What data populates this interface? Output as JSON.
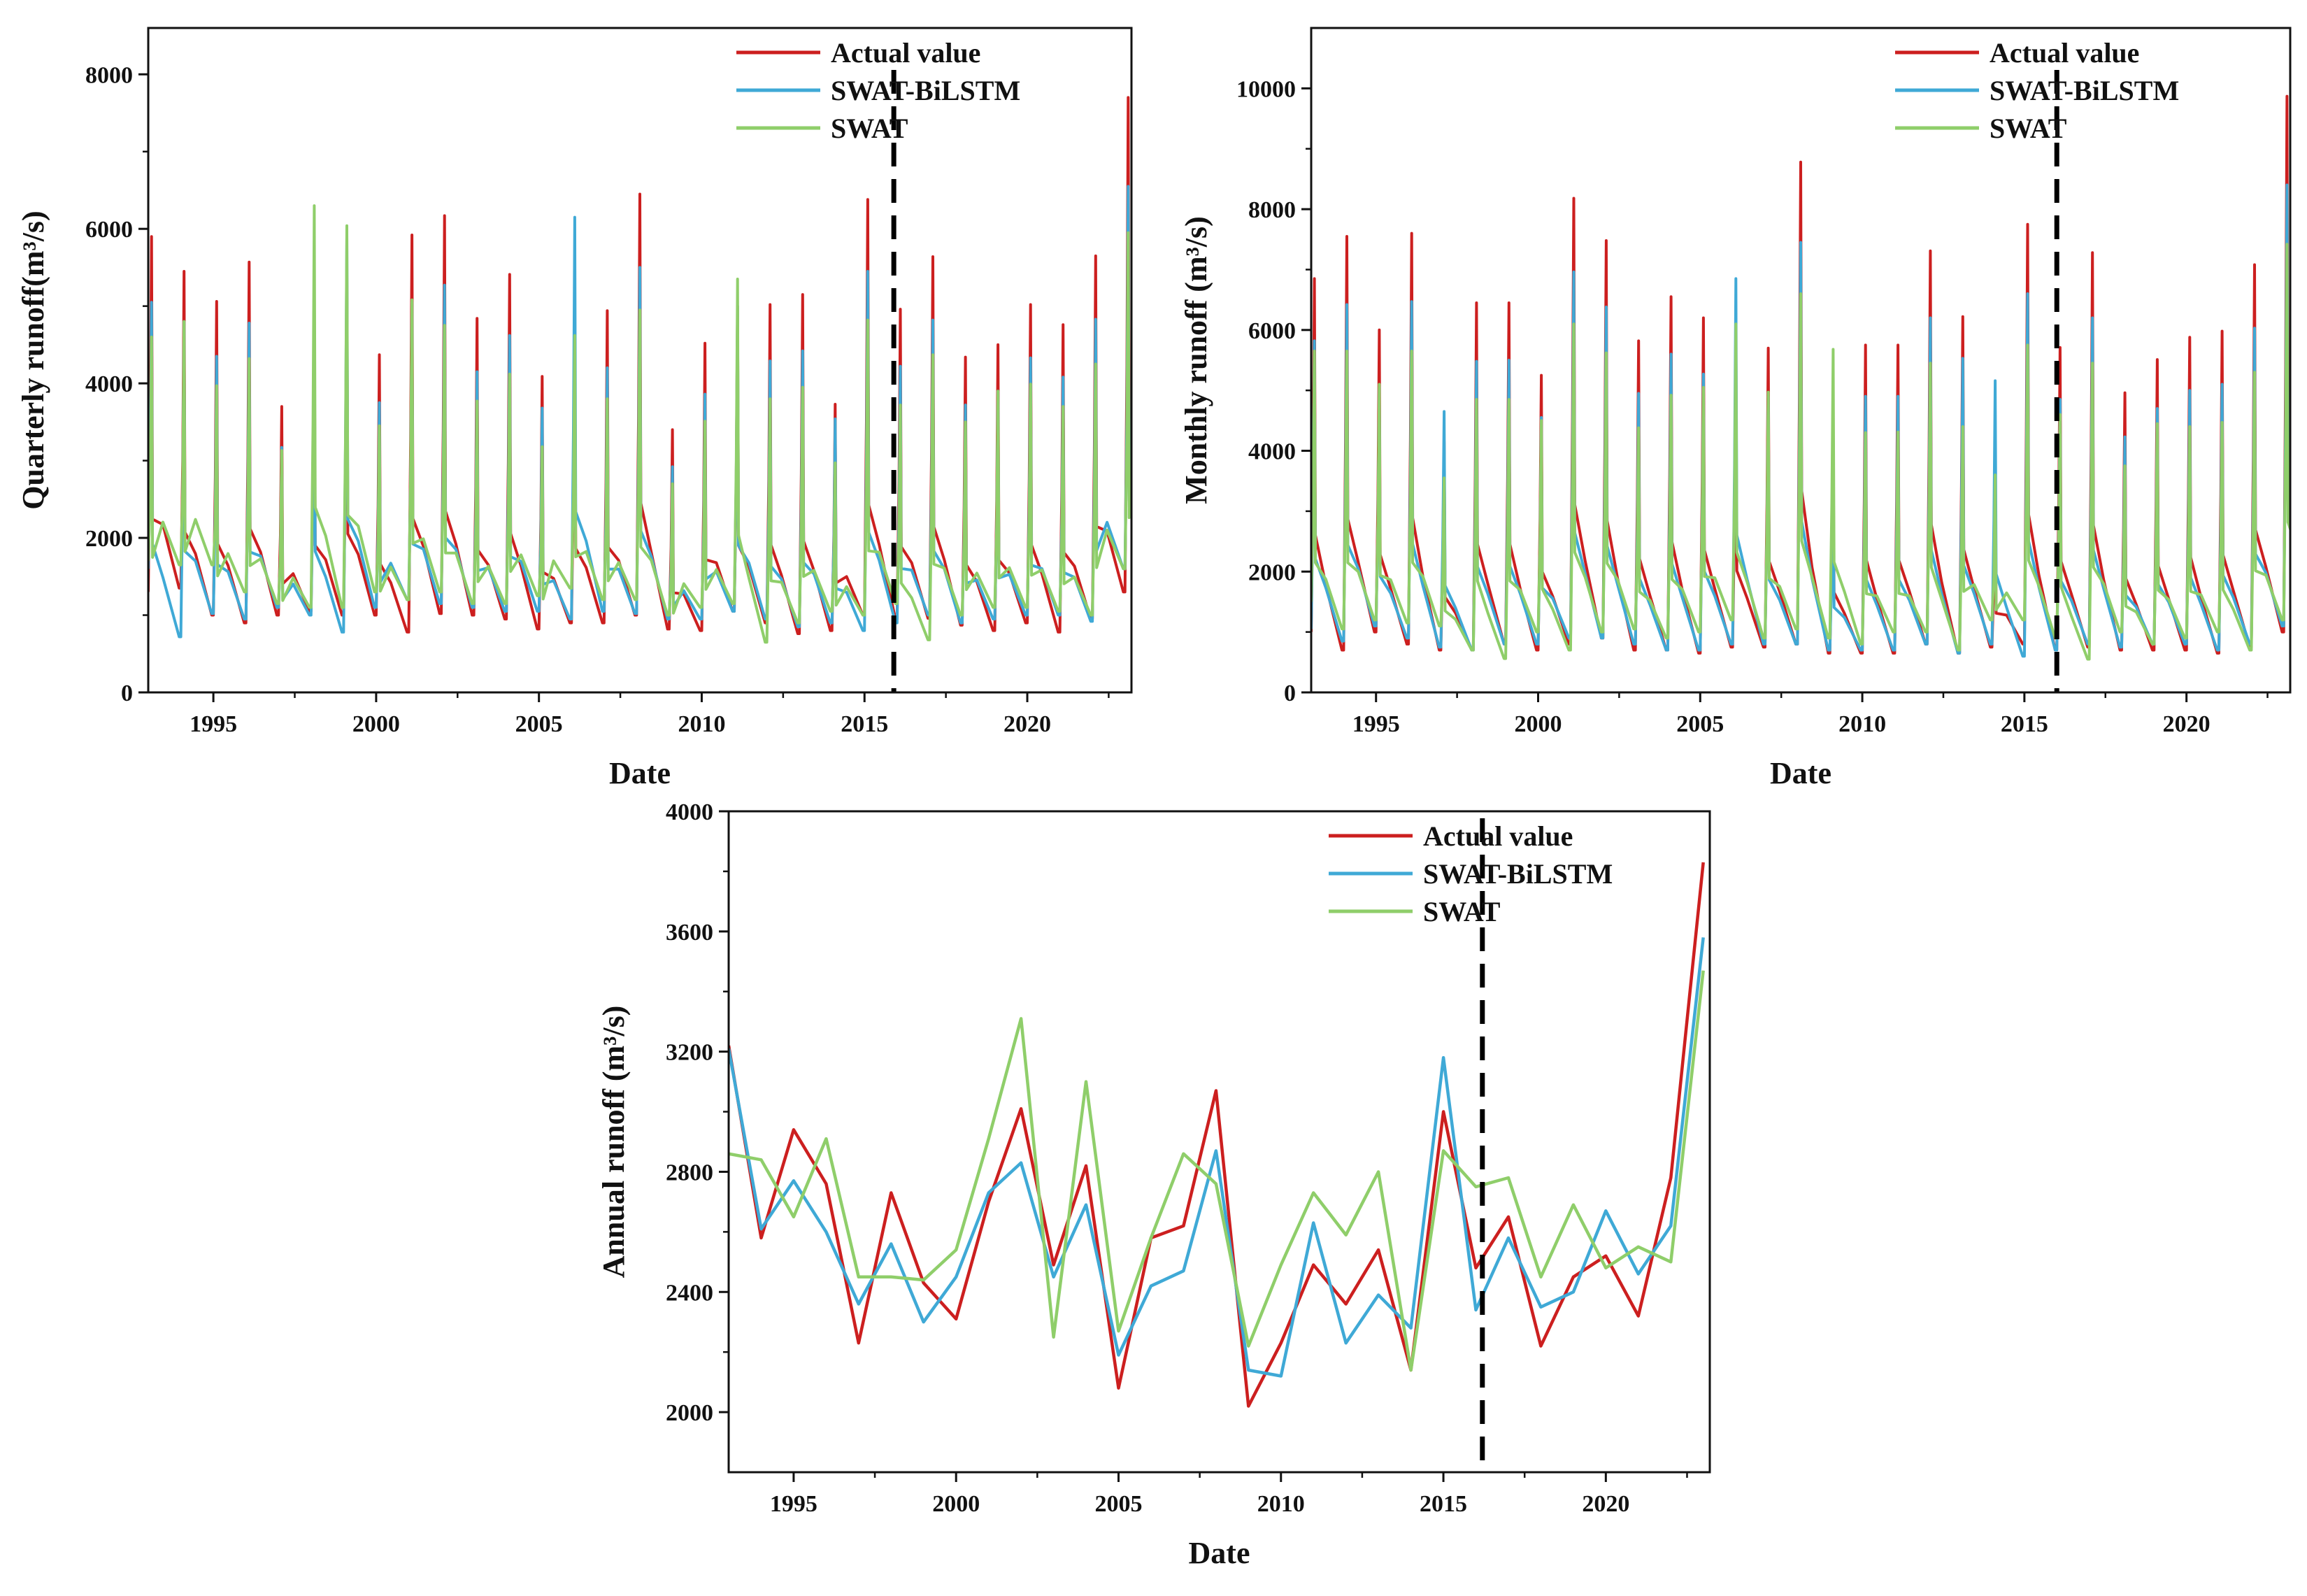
{
  "colors": {
    "actual": "#cc1f1f",
    "bilstm": "#3fa9d6",
    "swat": "#8fce6a",
    "axis": "#111111",
    "split": "#000000"
  },
  "chart_data": [
    {
      "id": "quarterly",
      "type": "line",
      "title": "",
      "xlabel": "Date",
      "ylabel": "Quarterly runoff(m³/s)",
      "xlim": [
        1993,
        2023.2
      ],
      "ylim": [
        0,
        8600
      ],
      "xticks": [
        1995,
        2000,
        2005,
        2010,
        2015,
        2020
      ],
      "yticks": [
        0,
        2000,
        4000,
        6000,
        8000
      ],
      "split_x": 2015.9,
      "legend_position": "top-right",
      "granularity": "quarterly",
      "peaks": {
        "actual": [
          5900,
          5450,
          5060,
          5570,
          3700,
          5000,
          5400,
          4370,
          5920,
          6170,
          4840,
          5410,
          4090,
          4900,
          4940,
          6450,
          3400,
          4520,
          5000,
          5020,
          5150,
          3730,
          6380,
          4960,
          5640,
          4340,
          4500,
          5020,
          4760,
          5650,
          7700
        ],
        "bilstm": [
          5050,
          4800,
          4350,
          4780,
          3170,
          4800,
          5900,
          3750,
          5050,
          5270,
          4150,
          4620,
          3680,
          6150,
          4200,
          5500,
          2920,
          3860,
          5000,
          4290,
          4420,
          3540,
          5450,
          4220,
          4820,
          3720,
          3900,
          4330,
          4080,
          4830,
          6550
        ],
        "swat": [
          4600,
          4800,
          3970,
          4320,
          3130,
          6300,
          6040,
          3450,
          5080,
          4750,
          3770,
          4120,
          3180,
          4620,
          3800,
          4950,
          2700,
          3510,
          5350,
          3800,
          3950,
          2970,
          4820,
          3720,
          4370,
          3500,
          3900,
          3990,
          3700,
          4250,
          5950
        ]
      },
      "lows": {
        "actual": [
          1300,
          1350,
          1000,
          900,
          1000,
          1050,
          1000,
          1000,
          780,
          1020,
          1000,
          950,
          820,
          900,
          900,
          1000,
          820,
          800,
          1050,
          900,
          760,
          800,
          1000,
          950,
          960,
          870,
          800,
          900,
          780,
          950,
          1300
        ],
        "bilstm": [
          1600,
          720,
          1020,
          950,
          1100,
          1000,
          780,
          1100,
          1200,
          1150,
          1100,
          1050,
          1050,
          950,
          1050,
          1020,
          950,
          950,
          1050,
          950,
          850,
          900,
          800,
          900,
          1000,
          900,
          950,
          1000,
          1000,
          920,
          1600
        ],
        "swat": [
          1700,
          1650,
          1650,
          1300,
          1150,
          1100,
          1100,
          1300,
          1200,
          1300,
          1150,
          1150,
          1250,
          1350,
          1200,
          1200,
          1000,
          1100,
          1150,
          650,
          900,
          1050,
          1000,
          1150,
          680,
          1000,
          1100,
          1100,
          1050,
          1000,
          1600
        ]
      }
    },
    {
      "id": "monthly",
      "type": "line",
      "title": "",
      "xlabel": "Date",
      "ylabel": "Monthly runoff (m³/s)",
      "xlim": [
        1993,
        2023.2
      ],
      "ylim": [
        0,
        11000
      ],
      "xticks": [
        1995,
        2000,
        2005,
        2010,
        2015,
        2020
      ],
      "yticks": [
        0,
        2000,
        4000,
        6000,
        8000,
        10000
      ],
      "split_x": 2016.0,
      "legend_position": "top-right",
      "granularity": "monthly",
      "peaks": {
        "actual": [
          6850,
          7550,
          6000,
          7600,
          4150,
          6450,
          6450,
          5250,
          8180,
          7480,
          5820,
          6550,
          6200,
          5300,
          5700,
          8780,
          4350,
          5750,
          5750,
          7310,
          6220,
          3450,
          7750,
          5710,
          7280,
          4960,
          5510,
          5880,
          5980,
          7080,
          9870
        ],
        "bilstm": [
          5820,
          6420,
          5050,
          6470,
          4650,
          5480,
          5500,
          4550,
          6960,
          6380,
          4950,
          5600,
          5270,
          6850,
          4900,
          7450,
          3700,
          4900,
          4900,
          6200,
          5530,
          5160,
          6600,
          4850,
          6200,
          4230,
          4700,
          5000,
          5100,
          6030,
          8400
        ],
        "swat": [
          5650,
          5650,
          5100,
          5650,
          3550,
          4850,
          4850,
          4500,
          6100,
          5620,
          4380,
          4920,
          5050,
          6100,
          4970,
          6600,
          5680,
          4300,
          4310,
          5450,
          4400,
          3600,
          5750,
          4600,
          5450,
          3750,
          4450,
          4400,
          4470,
          5300,
          7420
        ]
      },
      "lows": {
        "actual": [
          1000,
          700,
          1000,
          800,
          700,
          700,
          800,
          700,
          800,
          900,
          700,
          700,
          650,
          750,
          750,
          800,
          650,
          650,
          650,
          800,
          650,
          750,
          800,
          700,
          750,
          700,
          700,
          700,
          650,
          750,
          1000
        ],
        "bilstm": [
          1050,
          850,
          1100,
          900,
          750,
          700,
          800,
          800,
          900,
          900,
          800,
          700,
          700,
          800,
          800,
          800,
          700,
          700,
          700,
          800,
          650,
          800,
          600,
          700,
          800,
          750,
          800,
          800,
          700,
          800,
          1100
        ],
        "swat": [
          1500,
          1050,
          1200,
          1150,
          1100,
          700,
          560,
          1000,
          700,
          1000,
          1050,
          900,
          1000,
          1200,
          900,
          1050,
          900,
          800,
          1000,
          1000,
          700,
          1200,
          1200,
          900,
          550,
          1000,
          800,
          900,
          1000,
          700,
          1200
        ]
      }
    },
    {
      "id": "annual",
      "type": "line",
      "title": "",
      "xlabel": "Date",
      "ylabel": "Annual runoff (m³/s)",
      "xlim": [
        1993,
        2023.2
      ],
      "ylim": [
        1800,
        4000
      ],
      "xticks": [
        1995,
        2000,
        2005,
        2010,
        2015,
        2020
      ],
      "yticks": [
        2000,
        2400,
        2800,
        3200,
        3600,
        4000
      ],
      "split_x": 2016.2,
      "legend_position": "top-right",
      "granularity": "annual",
      "x": [
        1993,
        1994,
        1995,
        1996,
        1997,
        1998,
        1999,
        2000,
        2001,
        2002,
        2003,
        2004,
        2005,
        2006,
        2007,
        2008,
        2009,
        2010,
        2011,
        2012,
        2013,
        2014,
        2015,
        2016,
        2017,
        2018,
        2019,
        2020,
        2021,
        2022,
        2023
      ],
      "series": [
        {
          "name": "Actual value",
          "key": "actual",
          "values": [
            3220,
            2580,
            2940,
            2760,
            2230,
            2730,
            2430,
            2310,
            2700,
            3010,
            2490,
            2820,
            2080,
            2580,
            2620,
            3070,
            2020,
            2230,
            2490,
            2360,
            2540,
            2140,
            3000,
            2480,
            2650,
            2220,
            2450,
            2520,
            2320,
            2780,
            3830
          ]
        },
        {
          "name": "SWAT-BiLSTM",
          "key": "bilstm",
          "values": [
            3210,
            2610,
            2770,
            2600,
            2360,
            2560,
            2300,
            2450,
            2730,
            2830,
            2450,
            2690,
            2190,
            2420,
            2470,
            2870,
            2140,
            2120,
            2630,
            2230,
            2390,
            2280,
            3180,
            2340,
            2580,
            2350,
            2400,
            2670,
            2460,
            2620,
            3580
          ]
        },
        {
          "name": "SWAT",
          "key": "swat",
          "values": [
            2860,
            2840,
            2650,
            2910,
            2450,
            2450,
            2440,
            2540,
            2910,
            3310,
            2250,
            3100,
            2270,
            2580,
            2860,
            2760,
            2220,
            2490,
            2730,
            2590,
            2800,
            2140,
            2870,
            2750,
            2780,
            2450,
            2690,
            2480,
            2550,
            2500,
            3470
          ]
        }
      ]
    }
  ],
  "legend": {
    "items": [
      {
        "key": "actual",
        "label": "Actual value"
      },
      {
        "key": "bilstm",
        "label": "SWAT-BiLSTM"
      },
      {
        "key": "swat",
        "label": "SWAT"
      }
    ]
  }
}
